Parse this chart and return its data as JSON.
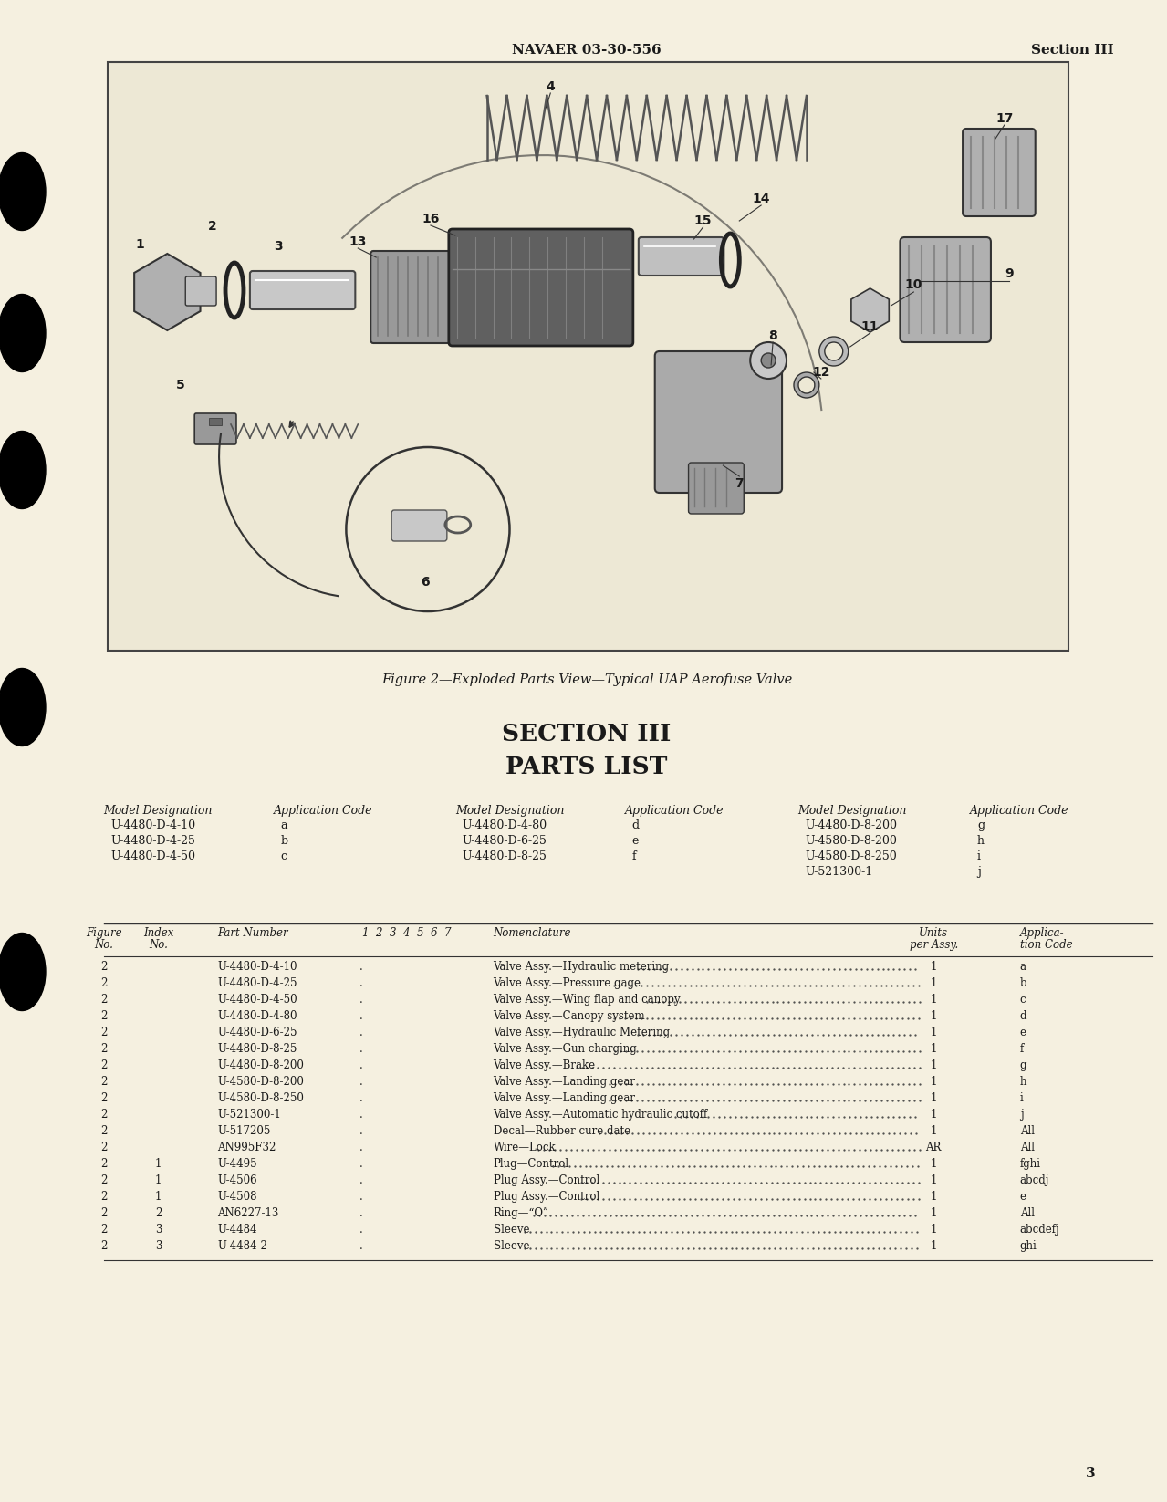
{
  "bg_color": "#f5f0e0",
  "header_left": "NAVAER 03-30-556",
  "header_right": "Section III",
  "figure_caption": "Figure 2—Exploded Parts View—Typical UAP Aerofuse Valve",
  "section_title": "SECTION III",
  "section_subtitle": "PARTS LIST",
  "model_data": [
    [
      "U-4480-D-4-10",
      "a",
      "U-4480-D-4-80",
      "d",
      "U-4480-D-8-200",
      "g"
    ],
    [
      "U-4480-D-4-25",
      "b",
      "U-4480-D-6-25",
      "e",
      "U-4580-D-8-200",
      "h"
    ],
    [
      "U-4480-D-4-50",
      "c",
      "U-4480-D-8-25",
      "f",
      "U-4580-D-8-250",
      "i"
    ],
    [
      "",
      "",
      "",
      "",
      "U-521300-1",
      "j"
    ]
  ],
  "table_rows": [
    [
      "2",
      "",
      "U-4480-D-4-10",
      ".",
      "Valve Assy.—Hydraulic metering",
      "1",
      "a"
    ],
    [
      "2",
      "",
      "U-4480-D-4-25",
      ".",
      "Valve Assy.—Pressure gage",
      "1",
      "b"
    ],
    [
      "2",
      "",
      "U-4480-D-4-50",
      ".",
      "Valve Assy.—Wing flap and canopy",
      "1",
      "c"
    ],
    [
      "2",
      "",
      "U-4480-D-4-80",
      ".",
      "Valve Assy.—Canopy system",
      "1",
      "d"
    ],
    [
      "2",
      "",
      "U-4480-D-6-25",
      ".",
      "Valve Assy.—Hydraulic Metering",
      "1",
      "e"
    ],
    [
      "2",
      "",
      "U-4480-D-8-25",
      ".",
      "Valve Assy.—Gun charging",
      "1",
      "f"
    ],
    [
      "2",
      "",
      "U-4480-D-8-200",
      ".",
      "Valve Assy.—Brake",
      "1",
      "g"
    ],
    [
      "2",
      "",
      "U-4580-D-8-200",
      ".",
      "Valve Assy.—Landing gear",
      "1",
      "h"
    ],
    [
      "2",
      "",
      "U-4580-D-8-250",
      ".",
      "Valve Assy.—Landing gear",
      "1",
      "i"
    ],
    [
      "2",
      "",
      "U-521300-1",
      ".",
      "Valve Assy.—Automatic hydraulic cutoff",
      "1",
      "j"
    ],
    [
      "2",
      "",
      "U-517205",
      ".",
      "Decal—Rubber cure date",
      "1",
      "All"
    ],
    [
      "2",
      "",
      "AN995F32",
      ".",
      "Wire—Lock",
      "AR",
      "All"
    ],
    [
      "2",
      "1",
      "U-4495",
      ".",
      "Plug—Control",
      "1",
      "fghi"
    ],
    [
      "2",
      "1",
      "U-4506",
      ".",
      "Plug Assy.—Control",
      "1",
      "abcdj"
    ],
    [
      "2",
      "1",
      "U-4508",
      ".",
      "Plug Assy.—Control",
      "1",
      "e"
    ],
    [
      "2",
      "2",
      "AN6227-13",
      ".",
      "Ring—“O”",
      "1",
      "All"
    ],
    [
      "2",
      "3",
      "U-4484",
      ".",
      "Sleeve",
      "1",
      "abcdefj"
    ],
    [
      "2",
      "3",
      "U-4484-2",
      ".",
      "Sleeve",
      "1",
      "ghi"
    ]
  ],
  "page_number": "3",
  "bullet_y": [
    210,
    365,
    515,
    775,
    1065
  ],
  "text_color": "#1a1a1a"
}
